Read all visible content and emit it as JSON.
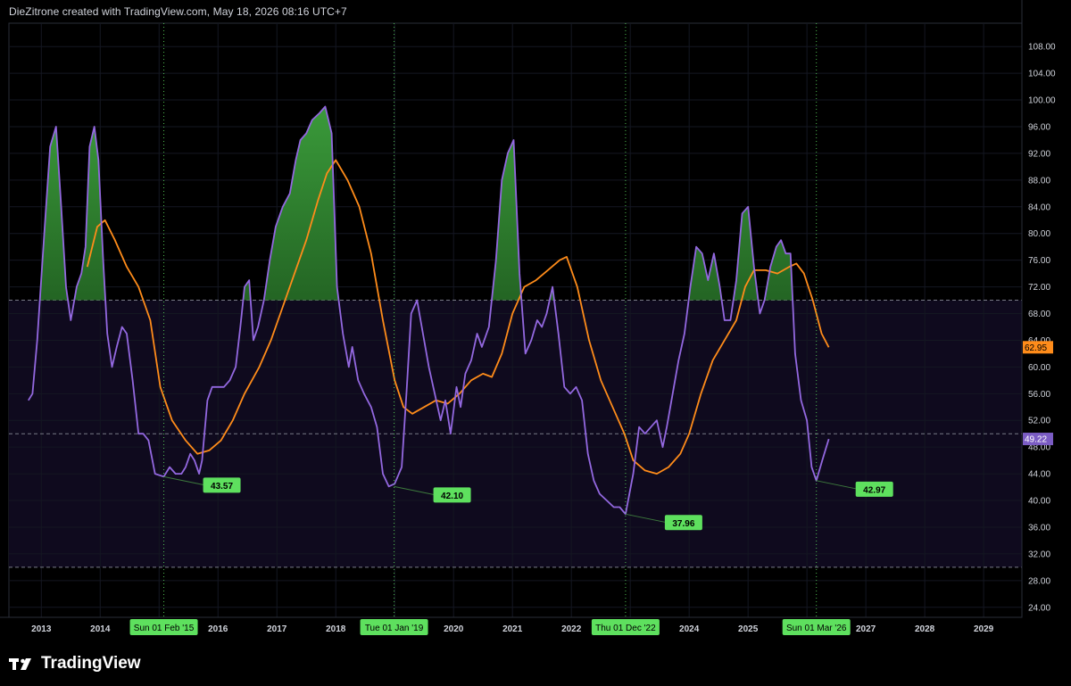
{
  "header": {
    "text": "DieZitrone created with TradingView.com, May 18, 2026 08:16 UTC+7"
  },
  "brand": {
    "label": "TradingView",
    "icon": "tradingview-logo-icon"
  },
  "chart_data": {
    "type": "line",
    "x_labels": [
      "2013",
      "2014",
      "2016",
      "2017",
      "2018",
      "2020",
      "2021",
      "2022",
      "2024",
      "2025",
      "2027",
      "2028",
      "2029"
    ],
    "y_ticks": [
      "108.00",
      "104.00",
      "100.00",
      "96.00",
      "92.00",
      "88.00",
      "84.00",
      "80.00",
      "76.00",
      "72.00",
      "68.00",
      "64.00",
      "60.00",
      "56.00",
      "52.00",
      "48.00",
      "44.00",
      "40.00",
      "36.00",
      "32.00",
      "28.00",
      "24.00"
    ],
    "ylim": [
      22.5,
      111.5
    ],
    "xlim": [
      2012.45,
      2029.65
    ],
    "band": {
      "upper": 70,
      "middle": 50,
      "lower": 30
    },
    "colors": {
      "rsi": "#9368e0",
      "ma": "#ff8c1a",
      "fill_top": "#3a9a3a",
      "fill_bottom": "#0b2a0b",
      "band_fill": "#0f0a1e",
      "marker": "#5ee05e",
      "rsi_badge": "#7b5cc4",
      "ma_badge": "#ff8c1a"
    },
    "series": [
      {
        "role": "rsi",
        "points": [
          [
            2012.78,
            55
          ],
          [
            2012.85,
            56
          ],
          [
            2012.93,
            64
          ],
          [
            2013.05,
            80
          ],
          [
            2013.15,
            93
          ],
          [
            2013.25,
            96
          ],
          [
            2013.33,
            85
          ],
          [
            2013.42,
            72
          ],
          [
            2013.5,
            67
          ],
          [
            2013.6,
            72
          ],
          [
            2013.68,
            74
          ],
          [
            2013.75,
            78
          ],
          [
            2013.82,
            93
          ],
          [
            2013.9,
            96
          ],
          [
            2013.97,
            91
          ],
          [
            2014.05,
            76
          ],
          [
            2014.12,
            65
          ],
          [
            2014.2,
            60
          ],
          [
            2014.28,
            63
          ],
          [
            2014.37,
            66
          ],
          [
            2014.45,
            65
          ],
          [
            2014.55,
            58
          ],
          [
            2014.65,
            50
          ],
          [
            2014.73,
            50
          ],
          [
            2014.82,
            49
          ],
          [
            2014.93,
            44
          ],
          [
            2015.08,
            43.57
          ],
          [
            2015.18,
            45
          ],
          [
            2015.28,
            44
          ],
          [
            2015.38,
            44
          ],
          [
            2015.45,
            45
          ],
          [
            2015.53,
            47
          ],
          [
            2015.6,
            46
          ],
          [
            2015.68,
            44
          ],
          [
            2015.73,
            46
          ],
          [
            2015.82,
            55
          ],
          [
            2015.9,
            57
          ],
          [
            2016.0,
            57
          ],
          [
            2016.1,
            57
          ],
          [
            2016.2,
            58
          ],
          [
            2016.3,
            60
          ],
          [
            2016.38,
            66
          ],
          [
            2016.45,
            72
          ],
          [
            2016.53,
            73
          ],
          [
            2016.6,
            64
          ],
          [
            2016.68,
            66
          ],
          [
            2016.78,
            70
          ],
          [
            2016.88,
            76
          ],
          [
            2016.98,
            81
          ],
          [
            2017.1,
            84
          ],
          [
            2017.22,
            86
          ],
          [
            2017.32,
            91
          ],
          [
            2017.4,
            94
          ],
          [
            2017.5,
            95
          ],
          [
            2017.6,
            97
          ],
          [
            2017.72,
            98
          ],
          [
            2017.82,
            99
          ],
          [
            2017.93,
            95
          ],
          [
            2018.02,
            72
          ],
          [
            2018.12,
            65
          ],
          [
            2018.22,
            60
          ],
          [
            2018.28,
            63
          ],
          [
            2018.38,
            58
          ],
          [
            2018.48,
            56
          ],
          [
            2018.6,
            54
          ],
          [
            2018.7,
            51
          ],
          [
            2018.8,
            44
          ],
          [
            2018.9,
            42.1
          ],
          [
            2019.0,
            42.5
          ],
          [
            2019.12,
            45
          ],
          [
            2019.2,
            56
          ],
          [
            2019.28,
            68
          ],
          [
            2019.38,
            70
          ],
          [
            2019.48,
            65
          ],
          [
            2019.58,
            60
          ],
          [
            2019.68,
            56
          ],
          [
            2019.78,
            52
          ],
          [
            2019.86,
            55
          ],
          [
            2019.95,
            50
          ],
          [
            2020.05,
            57
          ],
          [
            2020.12,
            54
          ],
          [
            2020.2,
            59
          ],
          [
            2020.3,
            61
          ],
          [
            2020.4,
            65
          ],
          [
            2020.48,
            63
          ],
          [
            2020.6,
            66
          ],
          [
            2020.72,
            76
          ],
          [
            2020.82,
            88
          ],
          [
            2020.92,
            92
          ],
          [
            2021.02,
            94
          ],
          [
            2021.12,
            74
          ],
          [
            2021.22,
            62
          ],
          [
            2021.32,
            64
          ],
          [
            2021.42,
            67
          ],
          [
            2021.5,
            66
          ],
          [
            2021.58,
            68
          ],
          [
            2021.68,
            72
          ],
          [
            2021.78,
            65
          ],
          [
            2021.88,
            57
          ],
          [
            2021.98,
            56
          ],
          [
            2022.08,
            57
          ],
          [
            2022.18,
            55
          ],
          [
            2022.28,
            47
          ],
          [
            2022.38,
            43
          ],
          [
            2022.48,
            41
          ],
          [
            2022.6,
            40
          ],
          [
            2022.72,
            39
          ],
          [
            2022.82,
            39
          ],
          [
            2022.92,
            37.96
          ],
          [
            2023.05,
            44
          ],
          [
            2023.15,
            51
          ],
          [
            2023.25,
            50
          ],
          [
            2023.35,
            51
          ],
          [
            2023.45,
            52
          ],
          [
            2023.55,
            48
          ],
          [
            2023.62,
            51
          ],
          [
            2023.72,
            56
          ],
          [
            2023.82,
            61
          ],
          [
            2023.92,
            65
          ],
          [
            2024.02,
            72
          ],
          [
            2024.12,
            78
          ],
          [
            2024.22,
            77
          ],
          [
            2024.32,
            73
          ],
          [
            2024.42,
            77
          ],
          [
            2024.52,
            72
          ],
          [
            2024.6,
            67
          ],
          [
            2024.7,
            67
          ],
          [
            2024.8,
            73
          ],
          [
            2024.9,
            83
          ],
          [
            2025.0,
            84
          ],
          [
            2025.1,
            75
          ],
          [
            2025.2,
            68
          ],
          [
            2025.28,
            70
          ],
          [
            2025.38,
            75
          ],
          [
            2025.48,
            78
          ],
          [
            2025.56,
            79
          ],
          [
            2025.64,
            77
          ],
          [
            2025.72,
            77
          ],
          [
            2025.8,
            62
          ],
          [
            2025.9,
            55
          ],
          [
            2026.0,
            52
          ],
          [
            2026.08,
            45
          ],
          [
            2026.16,
            42.97
          ],
          [
            2026.26,
            46
          ],
          [
            2026.37,
            49.22
          ]
        ]
      },
      {
        "role": "ma",
        "points": [
          [
            2013.78,
            75
          ],
          [
            2013.95,
            81
          ],
          [
            2014.08,
            82
          ],
          [
            2014.25,
            79
          ],
          [
            2014.45,
            75
          ],
          [
            2014.65,
            72
          ],
          [
            2014.85,
            67
          ],
          [
            2015.02,
            57
          ],
          [
            2015.22,
            52
          ],
          [
            2015.45,
            49
          ],
          [
            2015.65,
            47
          ],
          [
            2015.85,
            47.5
          ],
          [
            2016.05,
            49
          ],
          [
            2016.25,
            52
          ],
          [
            2016.45,
            56
          ],
          [
            2016.7,
            60
          ],
          [
            2016.9,
            64
          ],
          [
            2017.1,
            69
          ],
          [
            2017.3,
            74
          ],
          [
            2017.5,
            79
          ],
          [
            2017.7,
            85
          ],
          [
            2017.85,
            89
          ],
          [
            2018.0,
            91
          ],
          [
            2018.2,
            88
          ],
          [
            2018.4,
            84
          ],
          [
            2018.6,
            77
          ],
          [
            2018.8,
            67
          ],
          [
            2019.0,
            58
          ],
          [
            2019.15,
            54
          ],
          [
            2019.3,
            53
          ],
          [
            2019.5,
            54
          ],
          [
            2019.7,
            55
          ],
          [
            2019.9,
            54.5
          ],
          [
            2020.1,
            56
          ],
          [
            2020.3,
            58
          ],
          [
            2020.5,
            59
          ],
          [
            2020.65,
            58.5
          ],
          [
            2020.82,
            62
          ],
          [
            2021.0,
            68
          ],
          [
            2021.2,
            72
          ],
          [
            2021.4,
            73
          ],
          [
            2021.6,
            74.5
          ],
          [
            2021.8,
            76
          ],
          [
            2021.92,
            76.5
          ],
          [
            2022.1,
            72
          ],
          [
            2022.3,
            64
          ],
          [
            2022.5,
            58
          ],
          [
            2022.7,
            54
          ],
          [
            2022.9,
            50
          ],
          [
            2023.05,
            46
          ],
          [
            2023.25,
            44.5
          ],
          [
            2023.45,
            44
          ],
          [
            2023.65,
            45
          ],
          [
            2023.85,
            47
          ],
          [
            2024.0,
            50
          ],
          [
            2024.2,
            56
          ],
          [
            2024.4,
            61
          ],
          [
            2024.6,
            64
          ],
          [
            2024.8,
            67
          ],
          [
            2024.95,
            72
          ],
          [
            2025.1,
            74.5
          ],
          [
            2025.3,
            74.5
          ],
          [
            2025.5,
            74
          ],
          [
            2025.7,
            75
          ],
          [
            2025.82,
            75.5
          ],
          [
            2025.95,
            74
          ],
          [
            2026.1,
            70
          ],
          [
            2026.25,
            65
          ],
          [
            2026.37,
            62.95
          ]
        ]
      }
    ],
    "low_markers": [
      {
        "x": 2015.08,
        "y": 43.57,
        "value_label": "43.57",
        "date_label": "Sun 01 Feb '15"
      },
      {
        "x": 2018.99,
        "y": 42.1,
        "value_label": "42.10",
        "date_label": "Tue 01 Jan '19"
      },
      {
        "x": 2022.92,
        "y": 37.96,
        "value_label": "37.96",
        "date_label": "Thu 01 Dec '22"
      },
      {
        "x": 2026.16,
        "y": 42.97,
        "value_label": "42.97",
        "date_label": "Sun 01 Mar '26"
      }
    ],
    "last_values": {
      "rsi": "49.22",
      "ma": "62.95"
    }
  }
}
